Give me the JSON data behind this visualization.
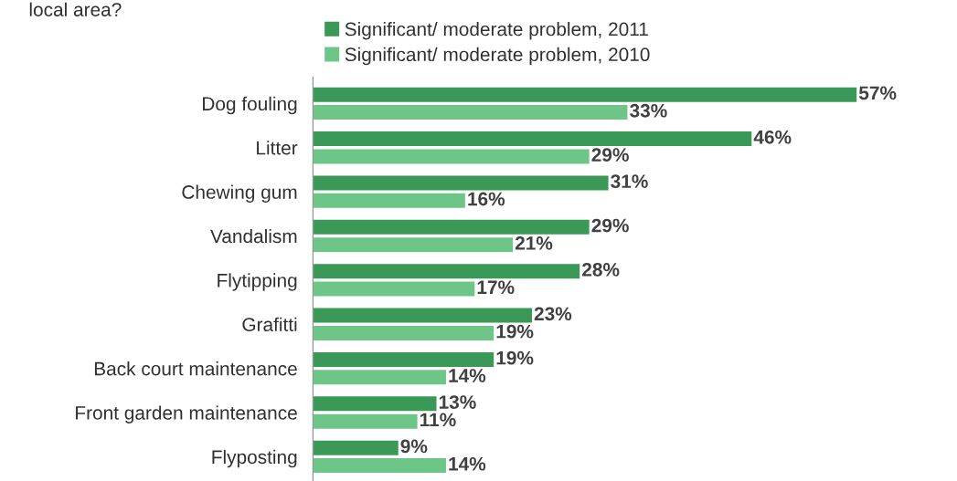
{
  "chart_data": {
    "type": "bar",
    "orientation": "horizontal",
    "title": "local area?",
    "categories": [
      "Dog fouling",
      "Litter",
      "Chewing gum",
      "Vandalism",
      "Flytipping",
      "Grafitti",
      "Back court maintenance",
      "Front garden maintenance",
      "Flyposting"
    ],
    "series": [
      {
        "name": "Significant/ moderate problem, 2011",
        "color": "#3a9957",
        "values": [
          57,
          46,
          31,
          29,
          28,
          23,
          19,
          13,
          9
        ],
        "value_labels": [
          "57%",
          "46%",
          "31%",
          "29%",
          "28%",
          "23%",
          "19%",
          "13%",
          "9%"
        ]
      },
      {
        "name": "Significant/ moderate problem, 2010",
        "color": "#6dc687",
        "values": [
          33,
          29,
          16,
          21,
          17,
          19,
          14,
          11,
          14
        ],
        "value_labels": [
          "33%",
          "29%",
          "16%",
          "21%",
          "17%",
          "19%",
          "14%",
          "11%",
          "14%"
        ]
      }
    ],
    "legend": "top",
    "tick_labels": "y"
  }
}
